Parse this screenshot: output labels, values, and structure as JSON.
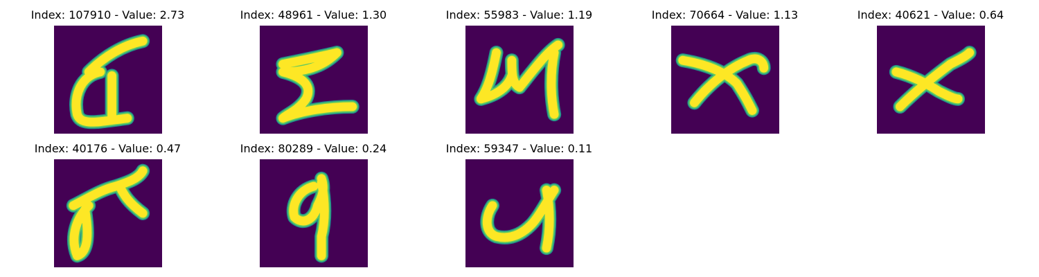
{
  "colors": {
    "background": "#440154",
    "stroke_core": "#fde725",
    "stroke_mid": "#5ec962",
    "stroke_edge": "#21918c"
  },
  "panels": [
    {
      "title": "Index: 107910 - Value: 2.73",
      "index": 107910,
      "value": 2.73
    },
    {
      "title": "Index: 48961 - Value: 1.30",
      "index": 48961,
      "value": 1.3
    },
    {
      "title": "Index: 55983 - Value: 1.19",
      "index": 55983,
      "value": 1.19
    },
    {
      "title": "Index: 70664 - Value: 1.13",
      "index": 70664,
      "value": 1.13
    },
    {
      "title": "Index: 40621 - Value: 0.64",
      "index": 40621,
      "value": 0.64
    },
    {
      "title": "Index: 40176 - Value: 0.47",
      "index": 40176,
      "value": 0.47
    },
    {
      "title": "Index: 80289 - Value: 0.24",
      "index": 80289,
      "value": 0.24
    },
    {
      "title": "Index: 59347 - Value: 0.11",
      "index": 59347,
      "value": 0.11
    }
  ]
}
